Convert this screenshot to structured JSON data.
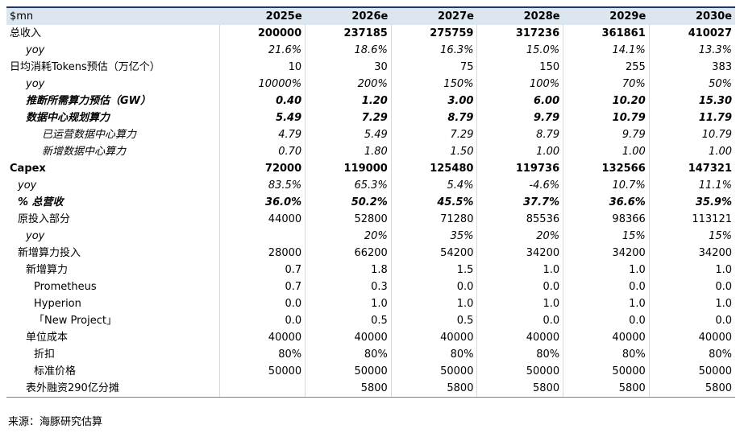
{
  "table": {
    "header": [
      "$mn",
      "2025e",
      "2026e",
      "2027e",
      "2028e",
      "2029e",
      "2030e"
    ],
    "rows": [
      [
        "总收入",
        "200000",
        "237185",
        "275759",
        "317236",
        "361861",
        "410027"
      ],
      [
        "yoy",
        "21.6%",
        "18.6%",
        "16.3%",
        "15.0%",
        "14.1%",
        "13.3%"
      ],
      [
        "日均消耗Tokens预估（万亿个）",
        "10",
        "30",
        "75",
        "150",
        "255",
        "383"
      ],
      [
        "yoy",
        "10000%",
        "200%",
        "150%",
        "100%",
        "70%",
        "50%"
      ],
      [
        "推断所需算力预估（GW）",
        "0.40",
        "1.20",
        "3.00",
        "6.00",
        "10.20",
        "15.30"
      ],
      [
        "数据中心规划算力",
        "5.49",
        "7.29",
        "8.79",
        "9.79",
        "10.79",
        "11.79"
      ],
      [
        "已运营数据中心算力",
        "4.79",
        "5.49",
        "7.29",
        "8.79",
        "9.79",
        "10.79"
      ],
      [
        "新增数据中心算力",
        "0.70",
        "1.80",
        "1.50",
        "1.00",
        "1.00",
        "1.00"
      ],
      [
        "Capex",
        "72000",
        "119000",
        "125480",
        "119736",
        "132566",
        "147321"
      ],
      [
        "yoy",
        "83.5%",
        "65.3%",
        "5.4%",
        "-4.6%",
        "10.7%",
        "11.1%"
      ],
      [
        "% 总营收",
        "36.0%",
        "50.2%",
        "45.5%",
        "37.7%",
        "36.6%",
        "35.9%"
      ],
      [
        "原投入部分",
        "44000",
        "52800",
        "71280",
        "85536",
        "98366",
        "113121"
      ],
      [
        "yoy",
        null,
        "20%",
        "35%",
        "20%",
        "15%",
        "15%"
      ],
      [
        "新增算力投入",
        "28000",
        "66200",
        "54200",
        "34200",
        "34200",
        "34200"
      ],
      [
        "新增算力",
        "0.7",
        "1.8",
        "1.5",
        "1.0",
        "1.0",
        "1.0"
      ],
      [
        "Prometheus",
        "0.7",
        "0.3",
        "0.0",
        "0.0",
        "0.0",
        "0.0"
      ],
      [
        "Hyperion",
        "0.0",
        "1.0",
        "1.0",
        "1.0",
        "1.0",
        "1.0"
      ],
      [
        "「New Project」",
        "0.0",
        "0.5",
        "0.5",
        "0.0",
        "0.0",
        "0.0"
      ],
      [
        "单位成本",
        "40000",
        "40000",
        "40000",
        "40000",
        "40000",
        "40000"
      ],
      [
        "折扣",
        "80%",
        "80%",
        "80%",
        "80%",
        "80%",
        "80%"
      ],
      [
        "标准价格",
        "50000",
        "50000",
        "50000",
        "50000",
        "50000",
        "50000"
      ],
      [
        "表外融资290亿分摊",
        null,
        "5800",
        "5800",
        "5800",
        "5800",
        "5800"
      ]
    ]
  },
  "footer": "来源：海豚研究估算"
}
